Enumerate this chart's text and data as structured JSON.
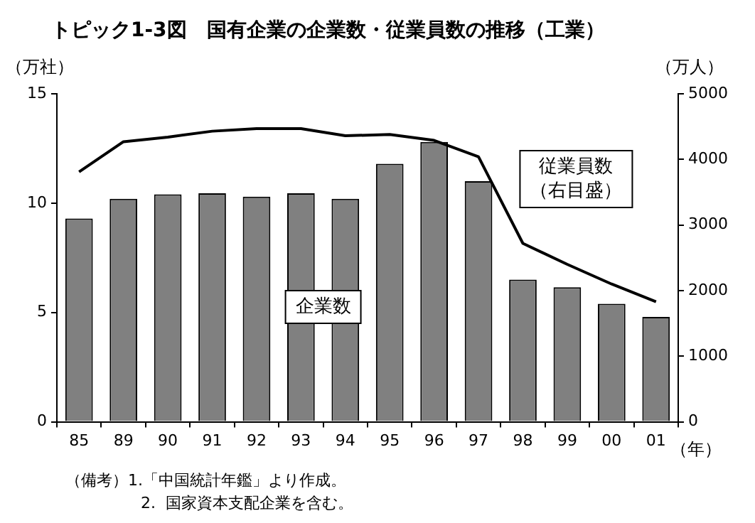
{
  "chart_data": {
    "type": "bar",
    "title": "トピック1-3図　国有企業の企業数・従業員数の推移（工業）",
    "ylabel": "（万社）",
    "y2label": "（万人）",
    "xlabel": "（年）",
    "annotations": [
      "（備考）1.「中国統計年鑑」より作成。",
      "2.  国家資本支配企業を含む。"
    ],
    "categories": [
      "85",
      "89",
      "90",
      "91",
      "92",
      "93",
      "94",
      "95",
      "96",
      "97",
      "98",
      "99",
      "00",
      "01"
    ],
    "series": [
      {
        "name": "企業数",
        "color": "#808080",
        "values": [
          9.3,
          10.2,
          10.4,
          10.45,
          10.3,
          10.45,
          10.2,
          11.8,
          12.8,
          11.0,
          6.5,
          6.15,
          5.4,
          4.8
        ]
      },
      {
        "name": "従業員数（右目盛）",
        "type": "line",
        "axis": "y2",
        "color": "#000000",
        "values": [
          3810,
          4270,
          4340,
          4430,
          4470,
          4470,
          4360,
          4380,
          4290,
          4040,
          2720,
          2400,
          2100,
          1830
        ]
      }
    ],
    "ylim": [
      0,
      15
    ],
    "yticks": [
      0,
      5,
      10,
      15
    ],
    "y2lim": [
      0,
      5000
    ],
    "y2ticks": [
      0,
      1000,
      2000,
      3000,
      4000,
      5000
    ],
    "grid": false,
    "legend": false,
    "marker": "none",
    "line_style": "solid"
  }
}
